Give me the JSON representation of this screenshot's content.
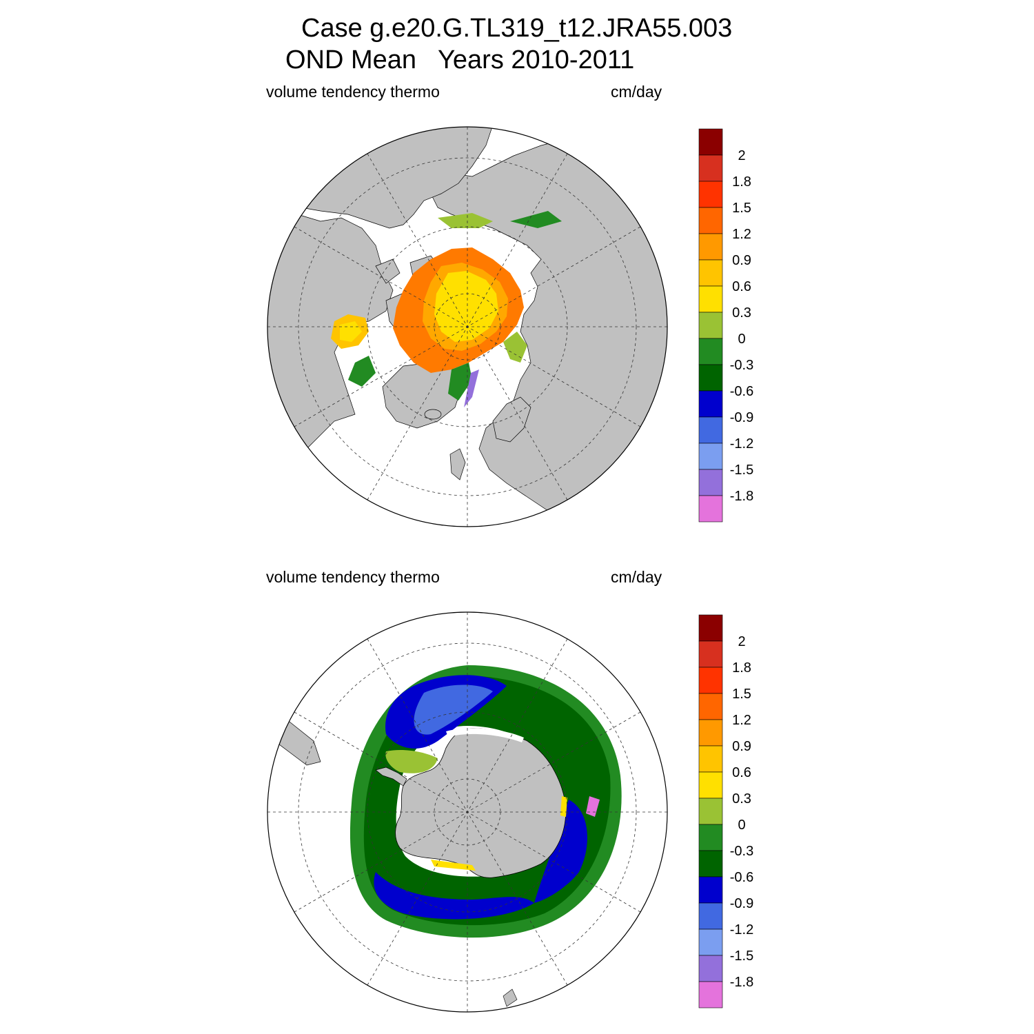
{
  "title": {
    "line1": "Case g.e20.G.TL319_t12.JRA55.003",
    "line2": "OND Mean   Years 2010-2011"
  },
  "panels": [
    {
      "id": "north",
      "hemisphere": "Northern",
      "label_left": "volume tendency thermo",
      "label_right": "cm/day"
    },
    {
      "id": "south",
      "hemisphere": "Southern",
      "label_left": "volume tendency thermo",
      "label_right": "cm/day"
    }
  ],
  "colorbar": {
    "labels": [
      "2",
      "1.8",
      "1.5",
      "1.2",
      "0.9",
      "0.6",
      "0.3",
      "0",
      "-0.3",
      "-0.6",
      "-0.9",
      "-1.2",
      "-1.5",
      "-1.8"
    ],
    "colors": [
      "#8b0000",
      "#d7301f",
      "#ff3300",
      "#ff6600",
      "#ff9900",
      "#ffc400",
      "#ffe000",
      "#9ac234",
      "#228b22",
      "#006400",
      "#0000cd",
      "#4169e1",
      "#7b9ef0",
      "#9370db",
      "#e473dc"
    ]
  },
  "colors": {
    "land": "#c0c0c0",
    "ocean": "#ffffff",
    "grid": "#555555"
  }
}
